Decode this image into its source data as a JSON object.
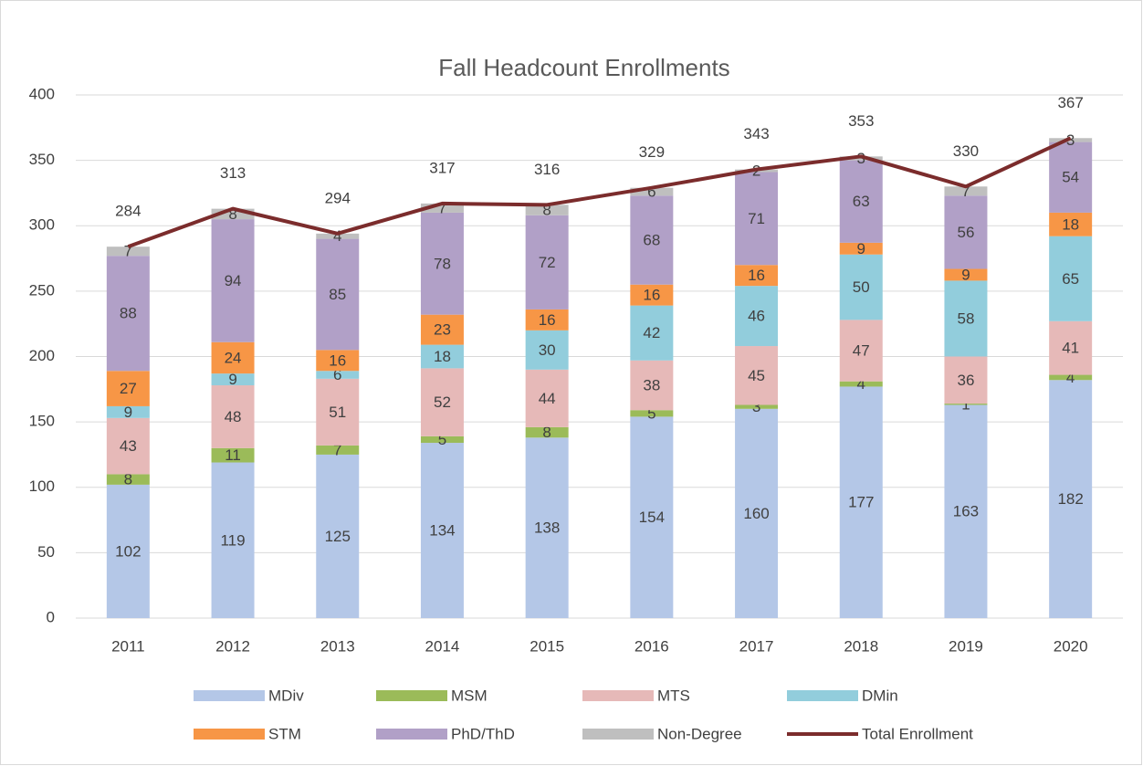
{
  "chart_data": {
    "type": "bar",
    "stacked": true,
    "title": "Fall Headcount Enrollments",
    "categories": [
      "2011",
      "2012",
      "2013",
      "2014",
      "2015",
      "2016",
      "2017",
      "2018",
      "2019",
      "2020"
    ],
    "series": [
      {
        "name": "MDiv",
        "color": "#b4c7e7",
        "values": [
          102,
          119,
          125,
          134,
          138,
          154,
          160,
          177,
          163,
          182
        ]
      },
      {
        "name": "MSM",
        "color": "#9bbb59",
        "values": [
          8,
          11,
          7,
          5,
          8,
          5,
          3,
          4,
          1,
          4
        ]
      },
      {
        "name": "MTS",
        "color": "#e6b9b8",
        "values": [
          43,
          48,
          51,
          52,
          44,
          38,
          45,
          47,
          36,
          41
        ]
      },
      {
        "name": "DMin",
        "color": "#92cddc",
        "values": [
          9,
          9,
          6,
          18,
          30,
          42,
          46,
          50,
          58,
          65
        ]
      },
      {
        "name": "STM",
        "color": "#f79646",
        "values": [
          27,
          24,
          16,
          23,
          16,
          16,
          16,
          9,
          9,
          18
        ]
      },
      {
        "name": "PhD/ThD",
        "color": "#b1a0c7",
        "values": [
          88,
          94,
          85,
          78,
          72,
          68,
          71,
          63,
          56,
          54
        ]
      },
      {
        "name": "Non-Degree",
        "color": "#bfbfbf",
        "values": [
          7,
          8,
          4,
          7,
          8,
          6,
          2,
          3,
          7,
          3
        ]
      },
      {
        "name": "Total Enrollment",
        "color": "#7b2c2c",
        "type": "line",
        "values": [
          284,
          313,
          294,
          317,
          316,
          329,
          343,
          353,
          330,
          367
        ]
      }
    ],
    "ylim": [
      0,
      400
    ],
    "yticks": [
      0,
      50,
      100,
      150,
      200,
      250,
      300,
      350,
      400
    ],
    "grid": true,
    "legend": "bottom"
  }
}
